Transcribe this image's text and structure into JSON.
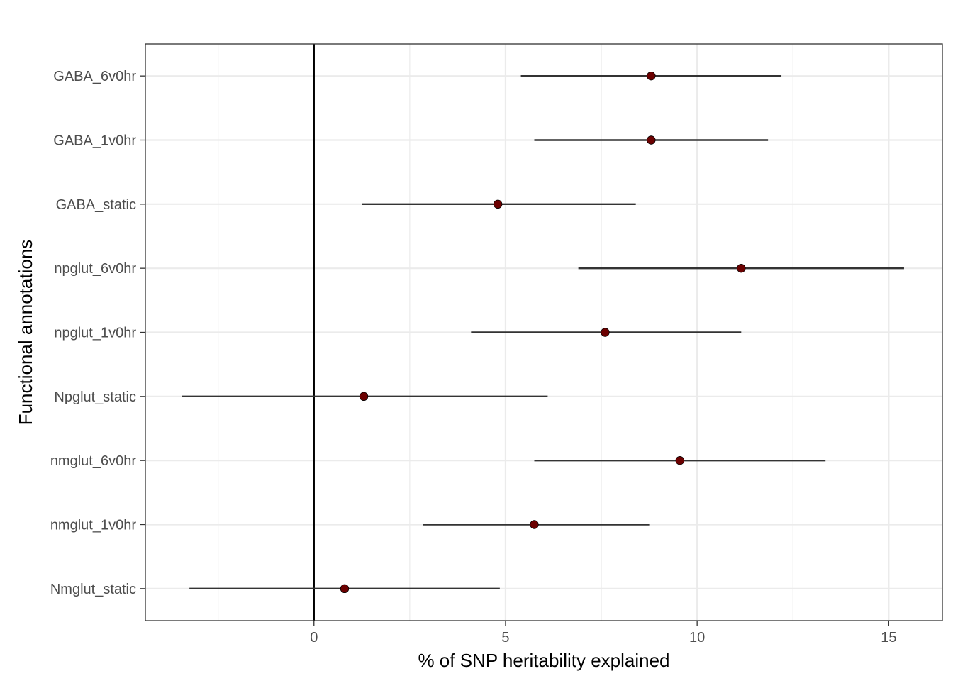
{
  "chart_data": {
    "type": "scatter",
    "subtype": "forest-plot",
    "title": "",
    "xlabel": "% of SNP heritability explained",
    "ylabel": "Functional annotations",
    "xlim": [
      -4.4,
      16.4
    ],
    "x_ticks": [
      0,
      5,
      10,
      15
    ],
    "reference_line_x": 0,
    "grid": true,
    "categories": [
      "GABA_6v0hr",
      "GABA_1v0hr",
      "GABA_static",
      "npglut_6v0hr",
      "npglut_1v0hr",
      "Npglut_static",
      "nmglut_6v0hr",
      "nmglut_1v0hr",
      "Nmglut_static"
    ],
    "series": [
      {
        "estimate": [
          8.8,
          8.8,
          4.8,
          11.15,
          7.6,
          1.3,
          9.55,
          5.75,
          0.8
        ],
        "lower": [
          5.4,
          5.75,
          1.25,
          6.9,
          4.1,
          -3.45,
          5.75,
          2.85,
          -3.25
        ],
        "upper": [
          12.2,
          11.85,
          8.4,
          15.4,
          11.15,
          6.1,
          13.35,
          8.75,
          4.85
        ]
      }
    ],
    "colors": {
      "point": "#6b0000",
      "errorbar": "#333333",
      "grid": "#ebebeb",
      "reference": "#000000",
      "border": "#333333"
    }
  }
}
